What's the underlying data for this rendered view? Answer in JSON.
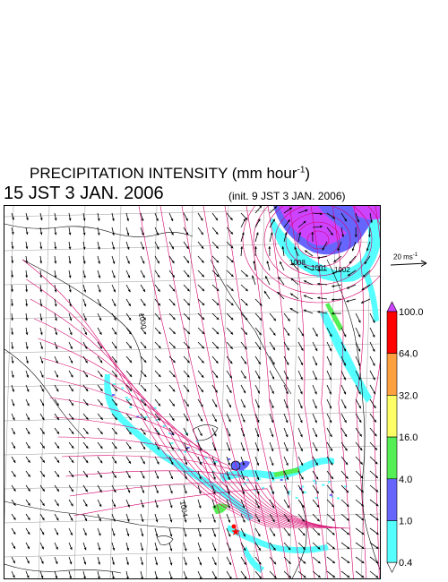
{
  "header": {
    "title_text": "PRECIPITATION INTENSITY (mm hour",
    "title_exponent": "-1",
    "title_close": ")",
    "valid_time": "15 JST 3 JAN. 2006",
    "init_time": "(init. 9 JST 3 JAN. 2006)"
  },
  "map": {
    "pressure_labels": [
      "1000",
      "1004",
      "1008",
      "1001",
      "1002"
    ],
    "cyclone_center": {
      "lon": 146.0,
      "lat": 46.5
    },
    "arrow_color": "#000000",
    "isobar_color": "#d4006a",
    "grid_color": "#999999",
    "coast_color": "#000000"
  },
  "wind_reference": {
    "label_text": "20 ms",
    "label_exponent": "-1"
  },
  "legend": {
    "levels": [
      "100.0",
      "64.0",
      "32.0",
      "16.0",
      "4.0",
      "1.0",
      "0.4"
    ],
    "colors": [
      "#ff0000",
      "#ffa040",
      "#ffff66",
      "#55ee55",
      "#6666ff",
      "#55ffff"
    ],
    "top_cap_color": "#cc44ff",
    "bottom_cap_color": "#ffffff"
  }
}
